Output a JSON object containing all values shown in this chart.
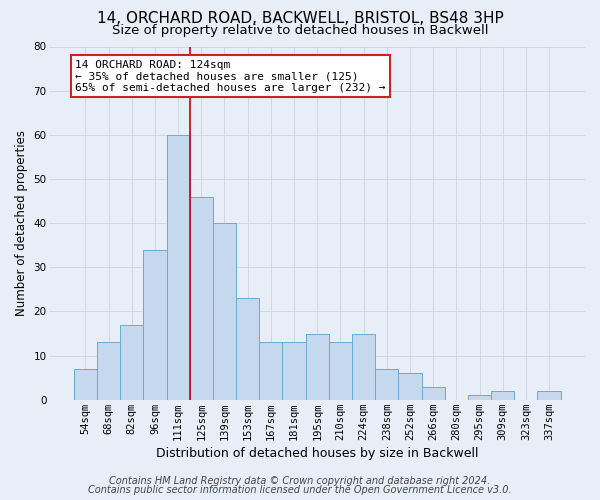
{
  "title1": "14, ORCHARD ROAD, BACKWELL, BRISTOL, BS48 3HP",
  "title2": "Size of property relative to detached houses in Backwell",
  "xlabel": "Distribution of detached houses by size in Backwell",
  "ylabel": "Number of detached properties",
  "footnote1": "Contains HM Land Registry data © Crown copyright and database right 2024.",
  "footnote2": "Contains public sector information licensed under the Open Government Licence v3.0.",
  "bar_labels": [
    "54sqm",
    "68sqm",
    "82sqm",
    "96sqm",
    "111sqm",
    "125sqm",
    "139sqm",
    "153sqm",
    "167sqm",
    "181sqm",
    "195sqm",
    "210sqm",
    "224sqm",
    "238sqm",
    "252sqm",
    "266sqm",
    "280sqm",
    "295sqm",
    "309sqm",
    "323sqm",
    "337sqm"
  ],
  "bar_values": [
    7,
    13,
    17,
    34,
    60,
    46,
    40,
    23,
    13,
    13,
    15,
    13,
    15,
    7,
    6,
    3,
    0,
    1,
    2,
    0,
    2
  ],
  "bar_color": "#c5d8ed",
  "bar_edge_color": "#6aaad4",
  "vline_x": 5,
  "vline_color": "#cc0000",
  "annotation_line1": "14 ORCHARD ROAD: 124sqm",
  "annotation_line2": "← 35% of detached houses are smaller (125)",
  "annotation_line3": "65% of semi-detached houses are larger (232) →",
  "annotation_box_facecolor": "#ffffff",
  "annotation_box_edgecolor": "#cc2222",
  "ylim": [
    0,
    80
  ],
  "yticks": [
    0,
    10,
    20,
    30,
    40,
    50,
    60,
    70,
    80
  ],
  "grid_color": "#c8d4e0",
  "background_color": "#e8eef8",
  "title1_fontsize": 11,
  "title2_fontsize": 9.5,
  "ylabel_fontsize": 8.5,
  "xlabel_fontsize": 9,
  "tick_fontsize": 7.5,
  "annotation_fontsize": 8,
  "footnote_fontsize": 7
}
